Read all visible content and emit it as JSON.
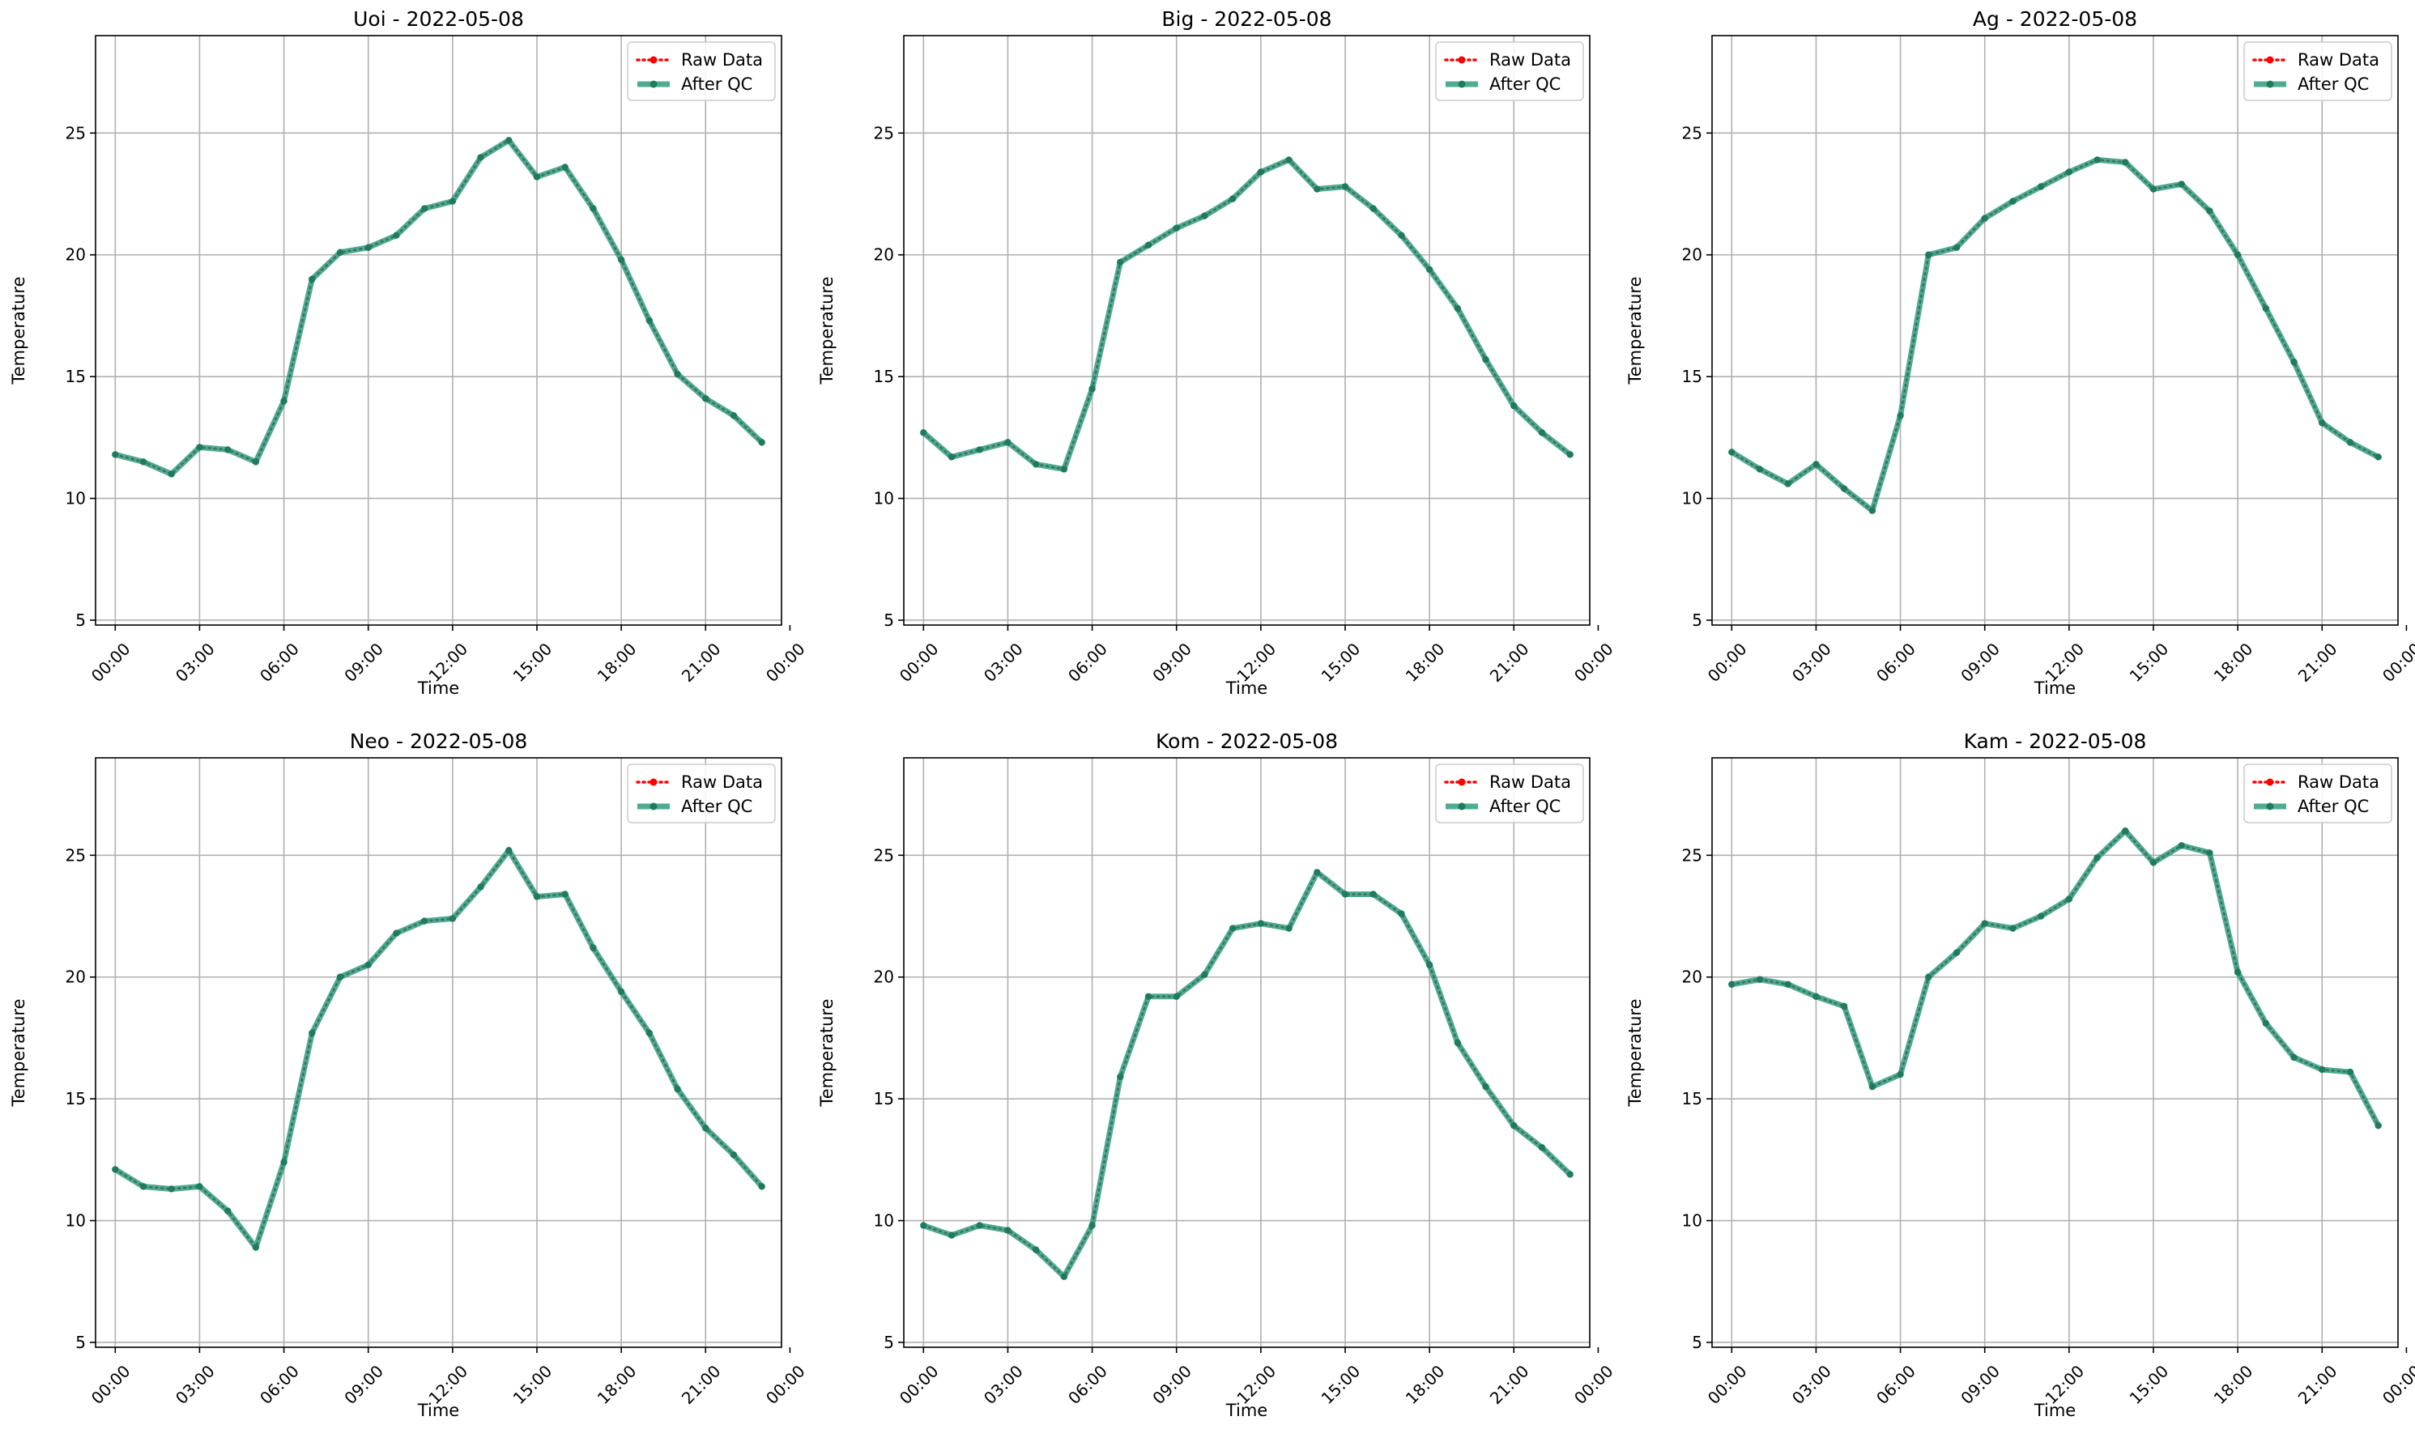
{
  "legend": {
    "raw_label": "Raw Data",
    "qc_label": "After QC",
    "position": "top-right"
  },
  "colors": {
    "raw": "#ff0000",
    "qc": "#2e9e80",
    "qc_marker": "#1f7a5e",
    "grid": "#b0b0b0"
  },
  "chart_data": [
    {
      "type": "line",
      "title": "Uoi - 2022-05-08",
      "xlabel": "Time",
      "ylabel": "Temperature",
      "xlim": [
        -0.7,
        23.7
      ],
      "ylim": [
        4.8,
        29.0
      ],
      "grid": true,
      "x_ticks": [
        0,
        3,
        6,
        9,
        12,
        15,
        18,
        21,
        24
      ],
      "x_tick_labels": [
        "00:00",
        "03:00",
        "06:00",
        "09:00",
        "12:00",
        "15:00",
        "18:00",
        "21:00",
        "00:00"
      ],
      "y_ticks": [
        5,
        10,
        15,
        20,
        25
      ],
      "x": [
        0,
        1,
        2,
        3,
        4,
        5,
        6,
        7,
        8,
        9,
        10,
        11,
        12,
        13,
        14,
        15,
        16,
        17,
        18,
        19,
        20,
        21,
        22,
        23
      ],
      "series": [
        {
          "name": "Raw Data",
          "values": [
            11.8,
            11.5,
            11.0,
            12.1,
            12.0,
            11.5,
            14.0,
            19.0,
            20.1,
            20.3,
            20.8,
            21.9,
            22.2,
            24.0,
            24.7,
            23.2,
            23.6,
            21.9,
            19.8,
            17.3,
            15.1,
            14.1,
            13.4,
            12.3
          ]
        },
        {
          "name": "After QC",
          "values": [
            11.8,
            11.5,
            11.0,
            12.1,
            12.0,
            11.5,
            14.0,
            19.0,
            20.1,
            20.3,
            20.8,
            21.9,
            22.2,
            24.0,
            24.7,
            23.2,
            23.6,
            21.9,
            19.8,
            17.3,
            15.1,
            14.1,
            13.4,
            12.3
          ]
        }
      ]
    },
    {
      "type": "line",
      "title": "Big - 2022-05-08",
      "xlabel": "Time",
      "ylabel": "Temperature",
      "xlim": [
        -0.7,
        23.7
      ],
      "ylim": [
        4.8,
        29.0
      ],
      "grid": true,
      "x_ticks": [
        0,
        3,
        6,
        9,
        12,
        15,
        18,
        21,
        24
      ],
      "x_tick_labels": [
        "00:00",
        "03:00",
        "06:00",
        "09:00",
        "12:00",
        "15:00",
        "18:00",
        "21:00",
        "00:00"
      ],
      "y_ticks": [
        5,
        10,
        15,
        20,
        25
      ],
      "x": [
        0,
        1,
        2,
        3,
        4,
        5,
        6,
        7,
        8,
        9,
        10,
        11,
        12,
        13,
        14,
        15,
        16,
        17,
        18,
        19,
        20,
        21,
        22,
        23
      ],
      "series": [
        {
          "name": "Raw Data",
          "values": [
            12.7,
            11.7,
            12.0,
            12.3,
            11.4,
            11.2,
            14.5,
            19.7,
            20.4,
            21.1,
            21.6,
            22.3,
            23.4,
            23.9,
            22.7,
            22.8,
            21.9,
            20.8,
            19.4,
            17.8,
            15.7,
            13.8,
            12.7,
            11.8
          ]
        },
        {
          "name": "After QC",
          "values": [
            12.7,
            11.7,
            12.0,
            12.3,
            11.4,
            11.2,
            14.5,
            19.7,
            20.4,
            21.1,
            21.6,
            22.3,
            23.4,
            23.9,
            22.7,
            22.8,
            21.9,
            20.8,
            19.4,
            17.8,
            15.7,
            13.8,
            12.7,
            11.8
          ]
        }
      ]
    },
    {
      "type": "line",
      "title": "Ag - 2022-05-08",
      "xlabel": "Time",
      "ylabel": "Temperature",
      "xlim": [
        -0.7,
        23.7
      ],
      "ylim": [
        4.8,
        29.0
      ],
      "grid": true,
      "x_ticks": [
        0,
        3,
        6,
        9,
        12,
        15,
        18,
        21,
        24
      ],
      "x_tick_labels": [
        "00:00",
        "03:00",
        "06:00",
        "09:00",
        "12:00",
        "15:00",
        "18:00",
        "21:00",
        "00:00"
      ],
      "y_ticks": [
        5,
        10,
        15,
        20,
        25
      ],
      "x": [
        0,
        1,
        2,
        3,
        4,
        5,
        6,
        7,
        8,
        9,
        10,
        11,
        12,
        13,
        14,
        15,
        16,
        17,
        18,
        19,
        20,
        21,
        22,
        23
      ],
      "series": [
        {
          "name": "Raw Data",
          "values": [
            11.9,
            11.2,
            10.6,
            11.4,
            10.4,
            9.5,
            13.4,
            20.0,
            20.3,
            21.5,
            22.2,
            22.8,
            23.4,
            23.9,
            23.8,
            22.7,
            22.9,
            21.8,
            20.0,
            17.8,
            15.6,
            13.1,
            12.3,
            11.7
          ]
        },
        {
          "name": "After QC",
          "values": [
            11.9,
            11.2,
            10.6,
            11.4,
            10.4,
            9.5,
            13.4,
            20.0,
            20.3,
            21.5,
            22.2,
            22.8,
            23.4,
            23.9,
            23.8,
            22.7,
            22.9,
            21.8,
            20.0,
            17.8,
            15.6,
            13.1,
            12.3,
            11.7
          ]
        }
      ]
    },
    {
      "type": "line",
      "title": "Neo - 2022-05-08",
      "xlabel": "Time",
      "ylabel": "Temperature",
      "xlim": [
        -0.7,
        23.7
      ],
      "ylim": [
        4.8,
        29.0
      ],
      "grid": true,
      "x_ticks": [
        0,
        3,
        6,
        9,
        12,
        15,
        18,
        21,
        24
      ],
      "x_tick_labels": [
        "00:00",
        "03:00",
        "06:00",
        "09:00",
        "12:00",
        "15:00",
        "18:00",
        "21:00",
        "00:00"
      ],
      "y_ticks": [
        5,
        10,
        15,
        20,
        25
      ],
      "x": [
        0,
        1,
        2,
        3,
        4,
        5,
        6,
        7,
        8,
        9,
        10,
        11,
        12,
        13,
        14,
        15,
        16,
        17,
        18,
        19,
        20,
        21,
        22,
        23
      ],
      "series": [
        {
          "name": "Raw Data",
          "values": [
            12.1,
            11.4,
            11.3,
            11.4,
            10.4,
            8.9,
            12.4,
            17.7,
            20.0,
            20.5,
            21.8,
            22.3,
            22.4,
            23.7,
            25.2,
            23.3,
            23.4,
            21.2,
            19.4,
            17.7,
            15.4,
            13.8,
            12.7,
            11.4
          ]
        },
        {
          "name": "After QC",
          "values": [
            12.1,
            11.4,
            11.3,
            11.4,
            10.4,
            8.9,
            12.4,
            17.7,
            20.0,
            20.5,
            21.8,
            22.3,
            22.4,
            23.7,
            25.2,
            23.3,
            23.4,
            21.2,
            19.4,
            17.7,
            15.4,
            13.8,
            12.7,
            11.4
          ]
        }
      ]
    },
    {
      "type": "line",
      "title": "Kom - 2022-05-08",
      "xlabel": "Time",
      "ylabel": "Temperature",
      "xlim": [
        -0.7,
        23.7
      ],
      "ylim": [
        4.8,
        29.0
      ],
      "grid": true,
      "x_ticks": [
        0,
        3,
        6,
        9,
        12,
        15,
        18,
        21,
        24
      ],
      "x_tick_labels": [
        "00:00",
        "03:00",
        "06:00",
        "09:00",
        "12:00",
        "15:00",
        "18:00",
        "21:00",
        "00:00"
      ],
      "y_ticks": [
        5,
        10,
        15,
        20,
        25
      ],
      "x": [
        0,
        1,
        2,
        3,
        4,
        5,
        6,
        7,
        8,
        9,
        10,
        11,
        12,
        13,
        14,
        15,
        16,
        17,
        18,
        19,
        20,
        21,
        22,
        23
      ],
      "series": [
        {
          "name": "Raw Data",
          "values": [
            9.8,
            9.4,
            9.8,
            9.6,
            8.8,
            7.7,
            9.8,
            15.9,
            19.2,
            19.2,
            20.1,
            22.0,
            22.2,
            22.0,
            24.3,
            23.4,
            23.4,
            22.6,
            20.5,
            17.3,
            15.5,
            13.9,
            13.0,
            11.9
          ]
        },
        {
          "name": "After QC",
          "values": [
            9.8,
            9.4,
            9.8,
            9.6,
            8.8,
            7.7,
            9.8,
            15.9,
            19.2,
            19.2,
            20.1,
            22.0,
            22.2,
            22.0,
            24.3,
            23.4,
            23.4,
            22.6,
            20.5,
            17.3,
            15.5,
            13.9,
            13.0,
            11.9
          ]
        }
      ]
    },
    {
      "type": "line",
      "title": "Kam - 2022-05-08",
      "xlabel": "Time",
      "ylabel": "Temperature",
      "xlim": [
        -0.7,
        23.7
      ],
      "ylim": [
        4.8,
        29.0
      ],
      "grid": true,
      "x_ticks": [
        0,
        3,
        6,
        9,
        12,
        15,
        18,
        21,
        24
      ],
      "x_tick_labels": [
        "00:00",
        "03:00",
        "06:00",
        "09:00",
        "12:00",
        "15:00",
        "18:00",
        "21:00",
        "00:00"
      ],
      "y_ticks": [
        5,
        10,
        15,
        20,
        25
      ],
      "x": [
        0,
        1,
        2,
        3,
        4,
        5,
        6,
        7,
        8,
        9,
        10,
        11,
        12,
        13,
        14,
        15,
        16,
        17,
        18,
        19,
        20,
        21,
        22,
        23
      ],
      "series": [
        {
          "name": "Raw Data",
          "values": [
            19.7,
            19.9,
            19.7,
            19.2,
            18.8,
            15.5,
            16.0,
            20.0,
            21.0,
            22.2,
            22.0,
            22.5,
            23.2,
            24.9,
            26.0,
            24.7,
            25.4,
            25.1,
            20.2,
            18.1,
            16.7,
            16.2,
            16.1,
            13.9
          ]
        },
        {
          "name": "After QC",
          "values": [
            19.7,
            19.9,
            19.7,
            19.2,
            18.8,
            15.5,
            16.0,
            20.0,
            21.0,
            22.2,
            22.0,
            22.5,
            23.2,
            24.9,
            26.0,
            24.7,
            25.4,
            25.1,
            20.2,
            18.1,
            16.7,
            16.2,
            16.1,
            13.9
          ]
        }
      ]
    }
  ]
}
